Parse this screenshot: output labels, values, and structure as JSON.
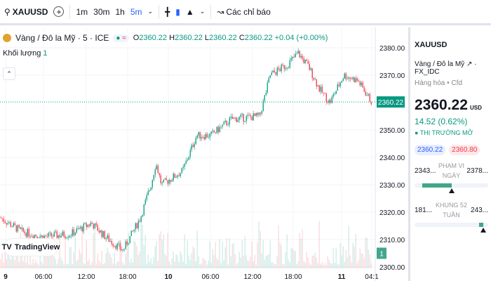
{
  "toolbar": {
    "symbol": "XAUUSD",
    "intervals": [
      "1m",
      "30m",
      "1h",
      "5m"
    ],
    "active_interval": "5m",
    "indicators_label": "Các chỉ báo"
  },
  "legend": {
    "title": "Vàng / Đô la Mỹ · 5 · ICE",
    "o": "2360.22",
    "h": "2360.22",
    "l": "2360.22",
    "c": "2360.22",
    "change": "+0.04 (+0.00%)",
    "volume_label": "Khối lượng",
    "volume_value": "1"
  },
  "chart_data": {
    "type": "candlestick",
    "price_ticks": [
      2380,
      2370,
      2350,
      2340,
      2330,
      2320,
      2310,
      2300
    ],
    "ylim": [
      2298,
      2385
    ],
    "time_ticks": [
      "9",
      "06:00",
      "12:00",
      "18:00",
      "10",
      "06:00",
      "12:00",
      "18:00",
      "11",
      "04:1"
    ],
    "price_path": [
      [
        0,
        2318
      ],
      [
        30,
        2313
      ],
      [
        60,
        2311
      ],
      [
        100,
        2312
      ],
      [
        130,
        2316
      ],
      [
        150,
        2311
      ],
      [
        175,
        2306
      ],
      [
        200,
        2318
      ],
      [
        215,
        2330
      ],
      [
        222,
        2338
      ],
      [
        230,
        2330
      ],
      [
        260,
        2335
      ],
      [
        280,
        2348
      ],
      [
        300,
        2348
      ],
      [
        330,
        2354
      ],
      [
        370,
        2355
      ],
      [
        385,
        2370
      ],
      [
        410,
        2374
      ],
      [
        425,
        2378
      ],
      [
        440,
        2373
      ],
      [
        455,
        2365
      ],
      [
        470,
        2360
      ],
      [
        490,
        2370
      ],
      [
        510,
        2368
      ],
      [
        530,
        2360
      ]
    ],
    "last_price": "2360.22",
    "volume_axis_label": "1"
  },
  "colors": {
    "up": "#089981",
    "down": "#f23645",
    "accent": "#2962ff"
  },
  "branding": "TradingView",
  "panel": {
    "symbol": "XAUUSD",
    "name": "Vàng / Đô la Mỹ",
    "exchange": "FX_IDC",
    "category": "Hàng hóa • Cfd",
    "price": "2360.22",
    "currency": "USD",
    "change": "14.52 (0.62%)",
    "status": "THỊ TRƯỜNG MỞ",
    "bid": "2360.22",
    "ask": "2360.80",
    "day_range": {
      "low": "2343...",
      "label": "PHẠM VI NGÀY",
      "high": "2378...",
      "fill_start": 0.1,
      "fill_end": 0.5,
      "marker": 0.5
    },
    "week52_range": {
      "low": "181...",
      "label": "KHUNG 52 TUẦN",
      "high": "243...",
      "fill_start": 0.88,
      "fill_end": 0.93,
      "marker": 0.93
    }
  }
}
